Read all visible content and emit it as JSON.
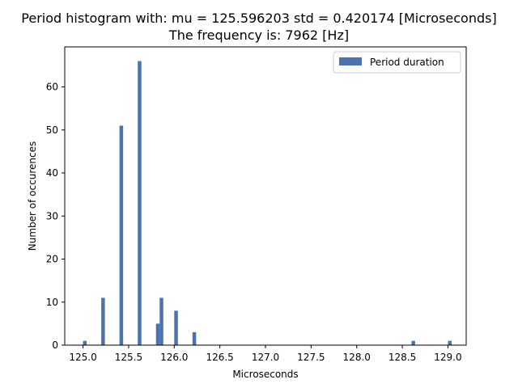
{
  "chart_data": {
    "type": "bar",
    "title_line1": "Period histogram with: mu = 125.596203  std = 0.420174 [Microseconds]",
    "title_line2": "The frequency is: 7962 [Hz]",
    "xlabel": "Microseconds",
    "ylabel": "Number of occurences",
    "xlim": [
      124.8,
      129.2
    ],
    "ylim": [
      0,
      69.3
    ],
    "xticks": [
      "125.0",
      "125.5",
      "126.0",
      "126.5",
      "127.0",
      "127.5",
      "128.0",
      "128.5",
      "129.0"
    ],
    "yticks": [
      "0",
      "10",
      "20",
      "30",
      "40",
      "50",
      "60"
    ],
    "bin_width": 0.04,
    "legend_position": "top-right",
    "series": [
      {
        "name": "Period duration",
        "color": "#4c72b0",
        "x": [
          125.0,
          125.2,
          125.4,
          125.6,
          125.8,
          125.84,
          126.0,
          126.2,
          128.6,
          129.0
        ],
        "values": [
          1,
          11,
          51,
          66,
          5,
          11,
          8,
          3,
          1,
          1
        ]
      }
    ]
  }
}
